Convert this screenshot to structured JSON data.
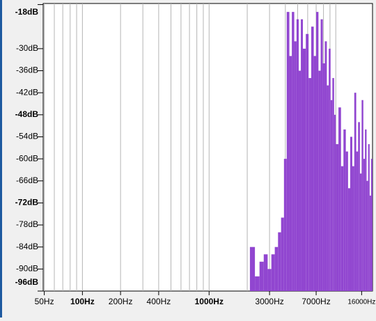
{
  "chart_data": {
    "type": "bar",
    "log_x": true,
    "color": "#9146d0",
    "grid": true,
    "xlim": [
      49,
      19500
    ],
    "ylim": [
      -96,
      -17.7
    ],
    "xticks": [
      {
        "value": 50,
        "label": "50Hz"
      },
      {
        "value": 100,
        "label": "100Hz",
        "bold": true
      },
      {
        "value": 200,
        "label": "200Hz"
      },
      {
        "value": 400,
        "label": "400Hz"
      },
      {
        "value": 1000,
        "label": "1000Hz",
        "bold": true
      },
      {
        "value": 3000,
        "label": "3000Hz"
      },
      {
        "value": 7000,
        "label": "7000Hz"
      },
      {
        "value": 16000,
        "label": "16000Hz",
        "small": true
      }
    ],
    "x_minor_ticks": [
      50,
      60,
      70,
      80,
      90,
      100,
      200,
      300,
      400,
      500,
      600,
      700,
      800,
      900,
      1000,
      2000,
      3000,
      4000,
      5000,
      6000,
      7000,
      8000,
      9000,
      10000
    ],
    "yticks": [
      {
        "value": -18,
        "label": "-18dB",
        "bold": true
      },
      {
        "value": -30,
        "label": "-30dB"
      },
      {
        "value": -36,
        "label": "-36dB"
      },
      {
        "value": -42,
        "label": "-42dB"
      },
      {
        "value": -48,
        "label": "-48dB",
        "bold": true
      },
      {
        "value": -54,
        "label": "-54dB"
      },
      {
        "value": -60,
        "label": "-60dB"
      },
      {
        "value": -66,
        "label": "-66dB"
      },
      {
        "value": -72,
        "label": "-72dB",
        "bold": true
      },
      {
        "value": -78,
        "label": "-78dB"
      },
      {
        "value": -84,
        "label": "-84dB"
      },
      {
        "value": -90,
        "label": "-90dB"
      },
      {
        "value": -96,
        "label": "-96dB",
        "bold": true
      }
    ],
    "x": [
      2100,
      2300,
      2500,
      2700,
      2900,
      3100,
      3300,
      3500,
      3700,
      3900,
      4100,
      4300,
      4500,
      4700,
      4900,
      5100,
      5300,
      5500,
      5800,
      6100,
      6400,
      6700,
      7000,
      7300,
      7600,
      7900,
      8200,
      8500,
      8800,
      9100,
      9400,
      9700,
      10000,
      10500,
      11000,
      11500,
      12000,
      12500,
      13000,
      13500,
      14000,
      14500,
      15000,
      15500,
      16000,
      16500,
      17000,
      17500,
      18000,
      18500,
      19000
    ],
    "values": [
      -84,
      -92,
      -88,
      -86,
      -90,
      -86,
      -84,
      -80,
      -76,
      -60,
      -20,
      -32,
      -20,
      -28,
      -22,
      -36,
      -22,
      -30,
      -26,
      -38,
      -24,
      -32,
      -20,
      -36,
      -22,
      -34,
      -28,
      -40,
      -30,
      -44,
      -38,
      -48,
      -56,
      -46,
      -62,
      -52,
      -58,
      -68,
      -54,
      -62,
      -42,
      -58,
      -50,
      -64,
      -44,
      -60,
      -52,
      -66,
      -56,
      -70,
      -60
    ]
  }
}
